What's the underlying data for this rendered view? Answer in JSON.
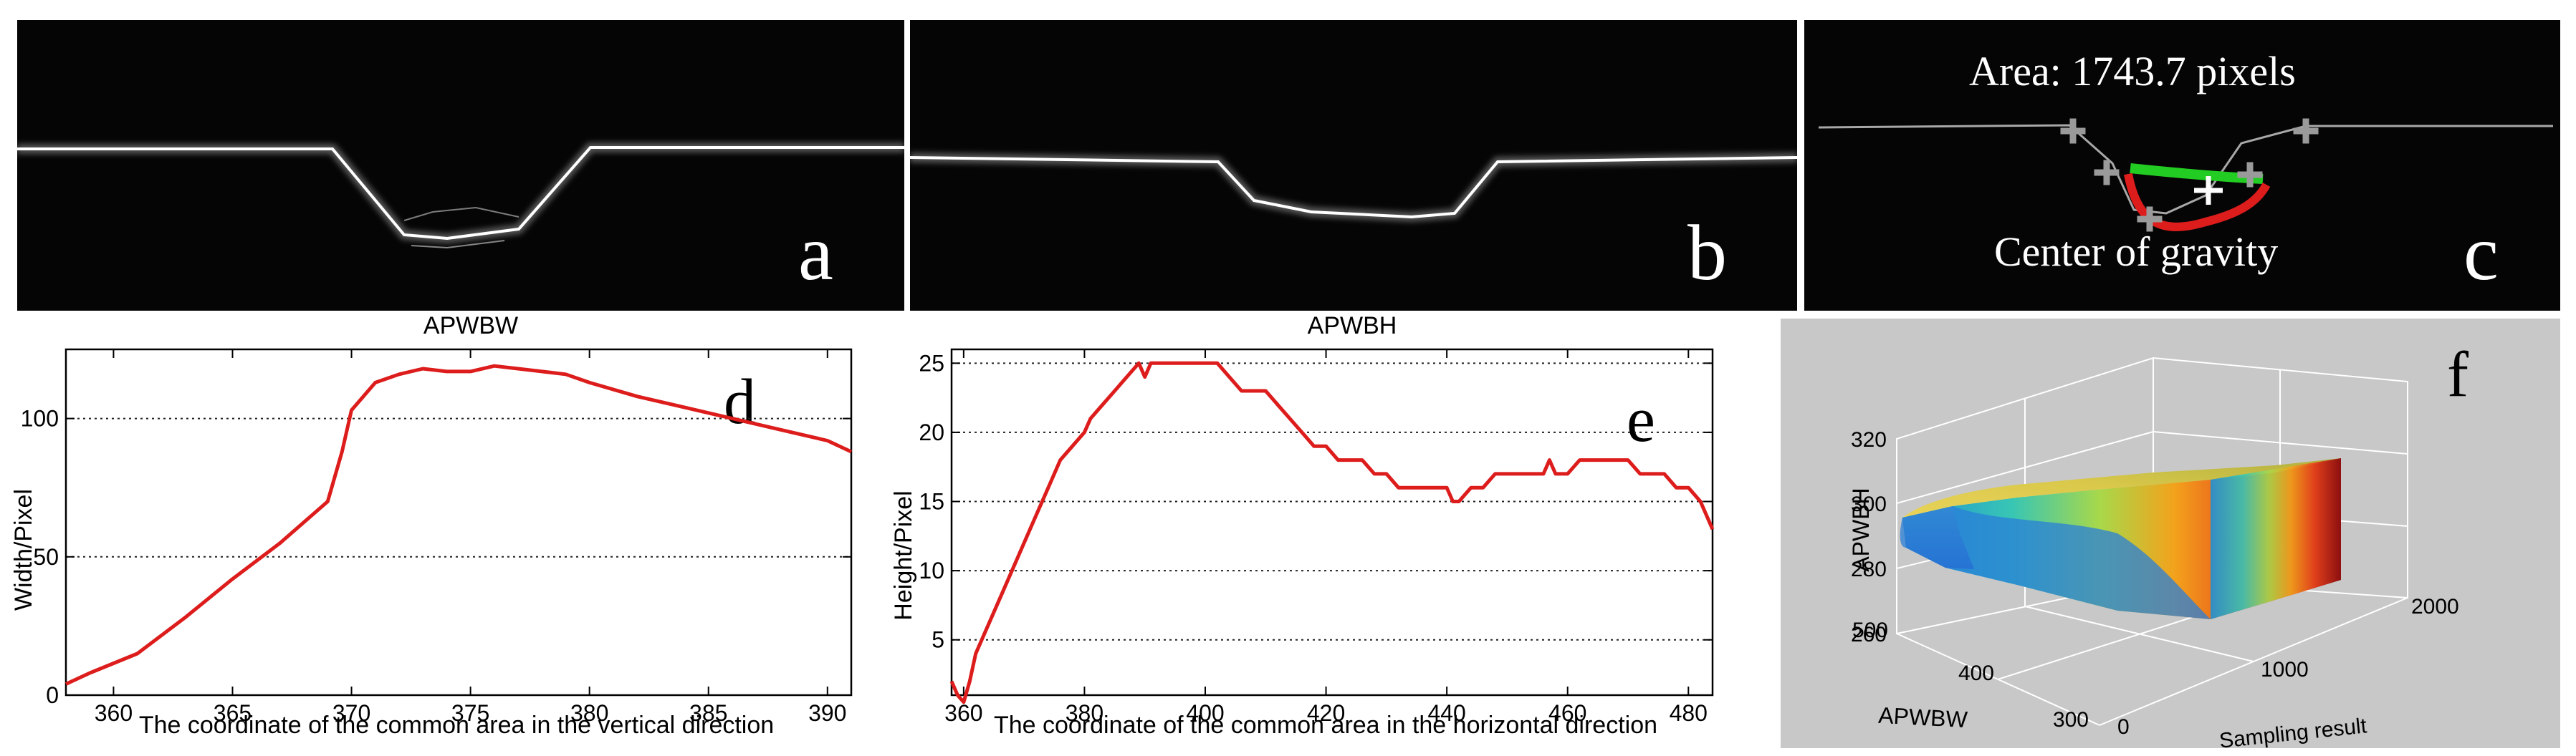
{
  "panels": {
    "a": {
      "letter": "a"
    },
    "b": {
      "letter": "b"
    },
    "c": {
      "letter": "c",
      "area_text": "Area: 1743.7 pixels",
      "center_text": "Center of gravity"
    },
    "d": {
      "letter": "d"
    },
    "e": {
      "letter": "e"
    },
    "f": {
      "letter": "f"
    }
  },
  "colors": {
    "curve": "#dd1c1c",
    "green": "#22cc22",
    "marker": "#9a9a9a",
    "surface_gray": "#c8c8c8"
  },
  "chart_data": [
    {
      "id": "d",
      "type": "line",
      "title": "APWBW",
      "xlabel": "The coordinate of the common area in the vertical direction",
      "ylabel": "Width/Pixel",
      "xlim": [
        358,
        391
      ],
      "ylim": [
        0,
        125
      ],
      "xticks": [
        360,
        365,
        370,
        375,
        380,
        385,
        390
      ],
      "yticks": [
        0,
        50,
        100
      ],
      "grid": "horizontal-dotted",
      "x": [
        358,
        359,
        361,
        363,
        365,
        367,
        369,
        369.6,
        370,
        371,
        372,
        373,
        374,
        375,
        376,
        377,
        378,
        379,
        380,
        382,
        384,
        386,
        388,
        390,
        391
      ],
      "y": [
        4,
        8,
        15,
        28,
        42,
        55,
        70,
        88,
        103,
        113,
        116,
        118,
        117,
        117,
        119,
        118,
        117,
        116,
        113,
        108,
        104,
        100,
        96,
        92,
        88
      ]
    },
    {
      "id": "e",
      "type": "line",
      "title": "APWBH",
      "xlabel": "The coordinate of the common area in the horizontal direction",
      "ylabel": "Height/Pixel",
      "xlim": [
        358,
        484
      ],
      "ylim": [
        1,
        26
      ],
      "xticks": [
        360,
        380,
        400,
        420,
        440,
        460,
        480
      ],
      "yticks": [
        5,
        10,
        15,
        20,
        25
      ],
      "grid": "horizontal-dotted",
      "x": [
        358,
        359,
        360,
        361,
        362,
        363,
        365,
        367,
        368,
        370,
        372,
        374,
        376,
        378,
        380,
        381,
        383,
        385,
        387,
        389,
        390,
        391,
        392,
        394,
        396,
        398,
        400,
        402,
        404,
        406,
        408,
        410,
        412,
        414,
        416,
        418,
        420,
        422,
        424,
        426,
        428,
        430,
        432,
        434,
        436,
        438,
        440,
        441,
        442,
        444,
        446,
        448,
        450,
        452,
        454,
        456,
        457,
        458,
        460,
        462,
        464,
        466,
        468,
        470,
        472,
        474,
        476,
        478,
        480,
        482,
        484
      ],
      "y": [
        2,
        1,
        0.5,
        2,
        4,
        5,
        7,
        9,
        10,
        12,
        14,
        16,
        18,
        19,
        20,
        21,
        22,
        23,
        24,
        25,
        24,
        25,
        25,
        25,
        25,
        25,
        25,
        25,
        24,
        23,
        23,
        23,
        22,
        21,
        20,
        19,
        19,
        18,
        18,
        18,
        17,
        17,
        16,
        16,
        16,
        16,
        16,
        15,
        15,
        16,
        16,
        17,
        17,
        17,
        17,
        17,
        18,
        17,
        17,
        18,
        18,
        18,
        18,
        18,
        17,
        17,
        17,
        16,
        16,
        15,
        13
      ]
    },
    {
      "id": "f",
      "type": "surface",
      "xlabel": "Sampling result",
      "ylabel": "APWBW",
      "zlabel": "APWBH",
      "xticks": [
        0,
        1000,
        2000
      ],
      "yticks": [
        300,
        400,
        500
      ],
      "zticks": [
        260,
        280,
        300,
        320
      ],
      "grid": true,
      "colormap": "jet"
    }
  ]
}
